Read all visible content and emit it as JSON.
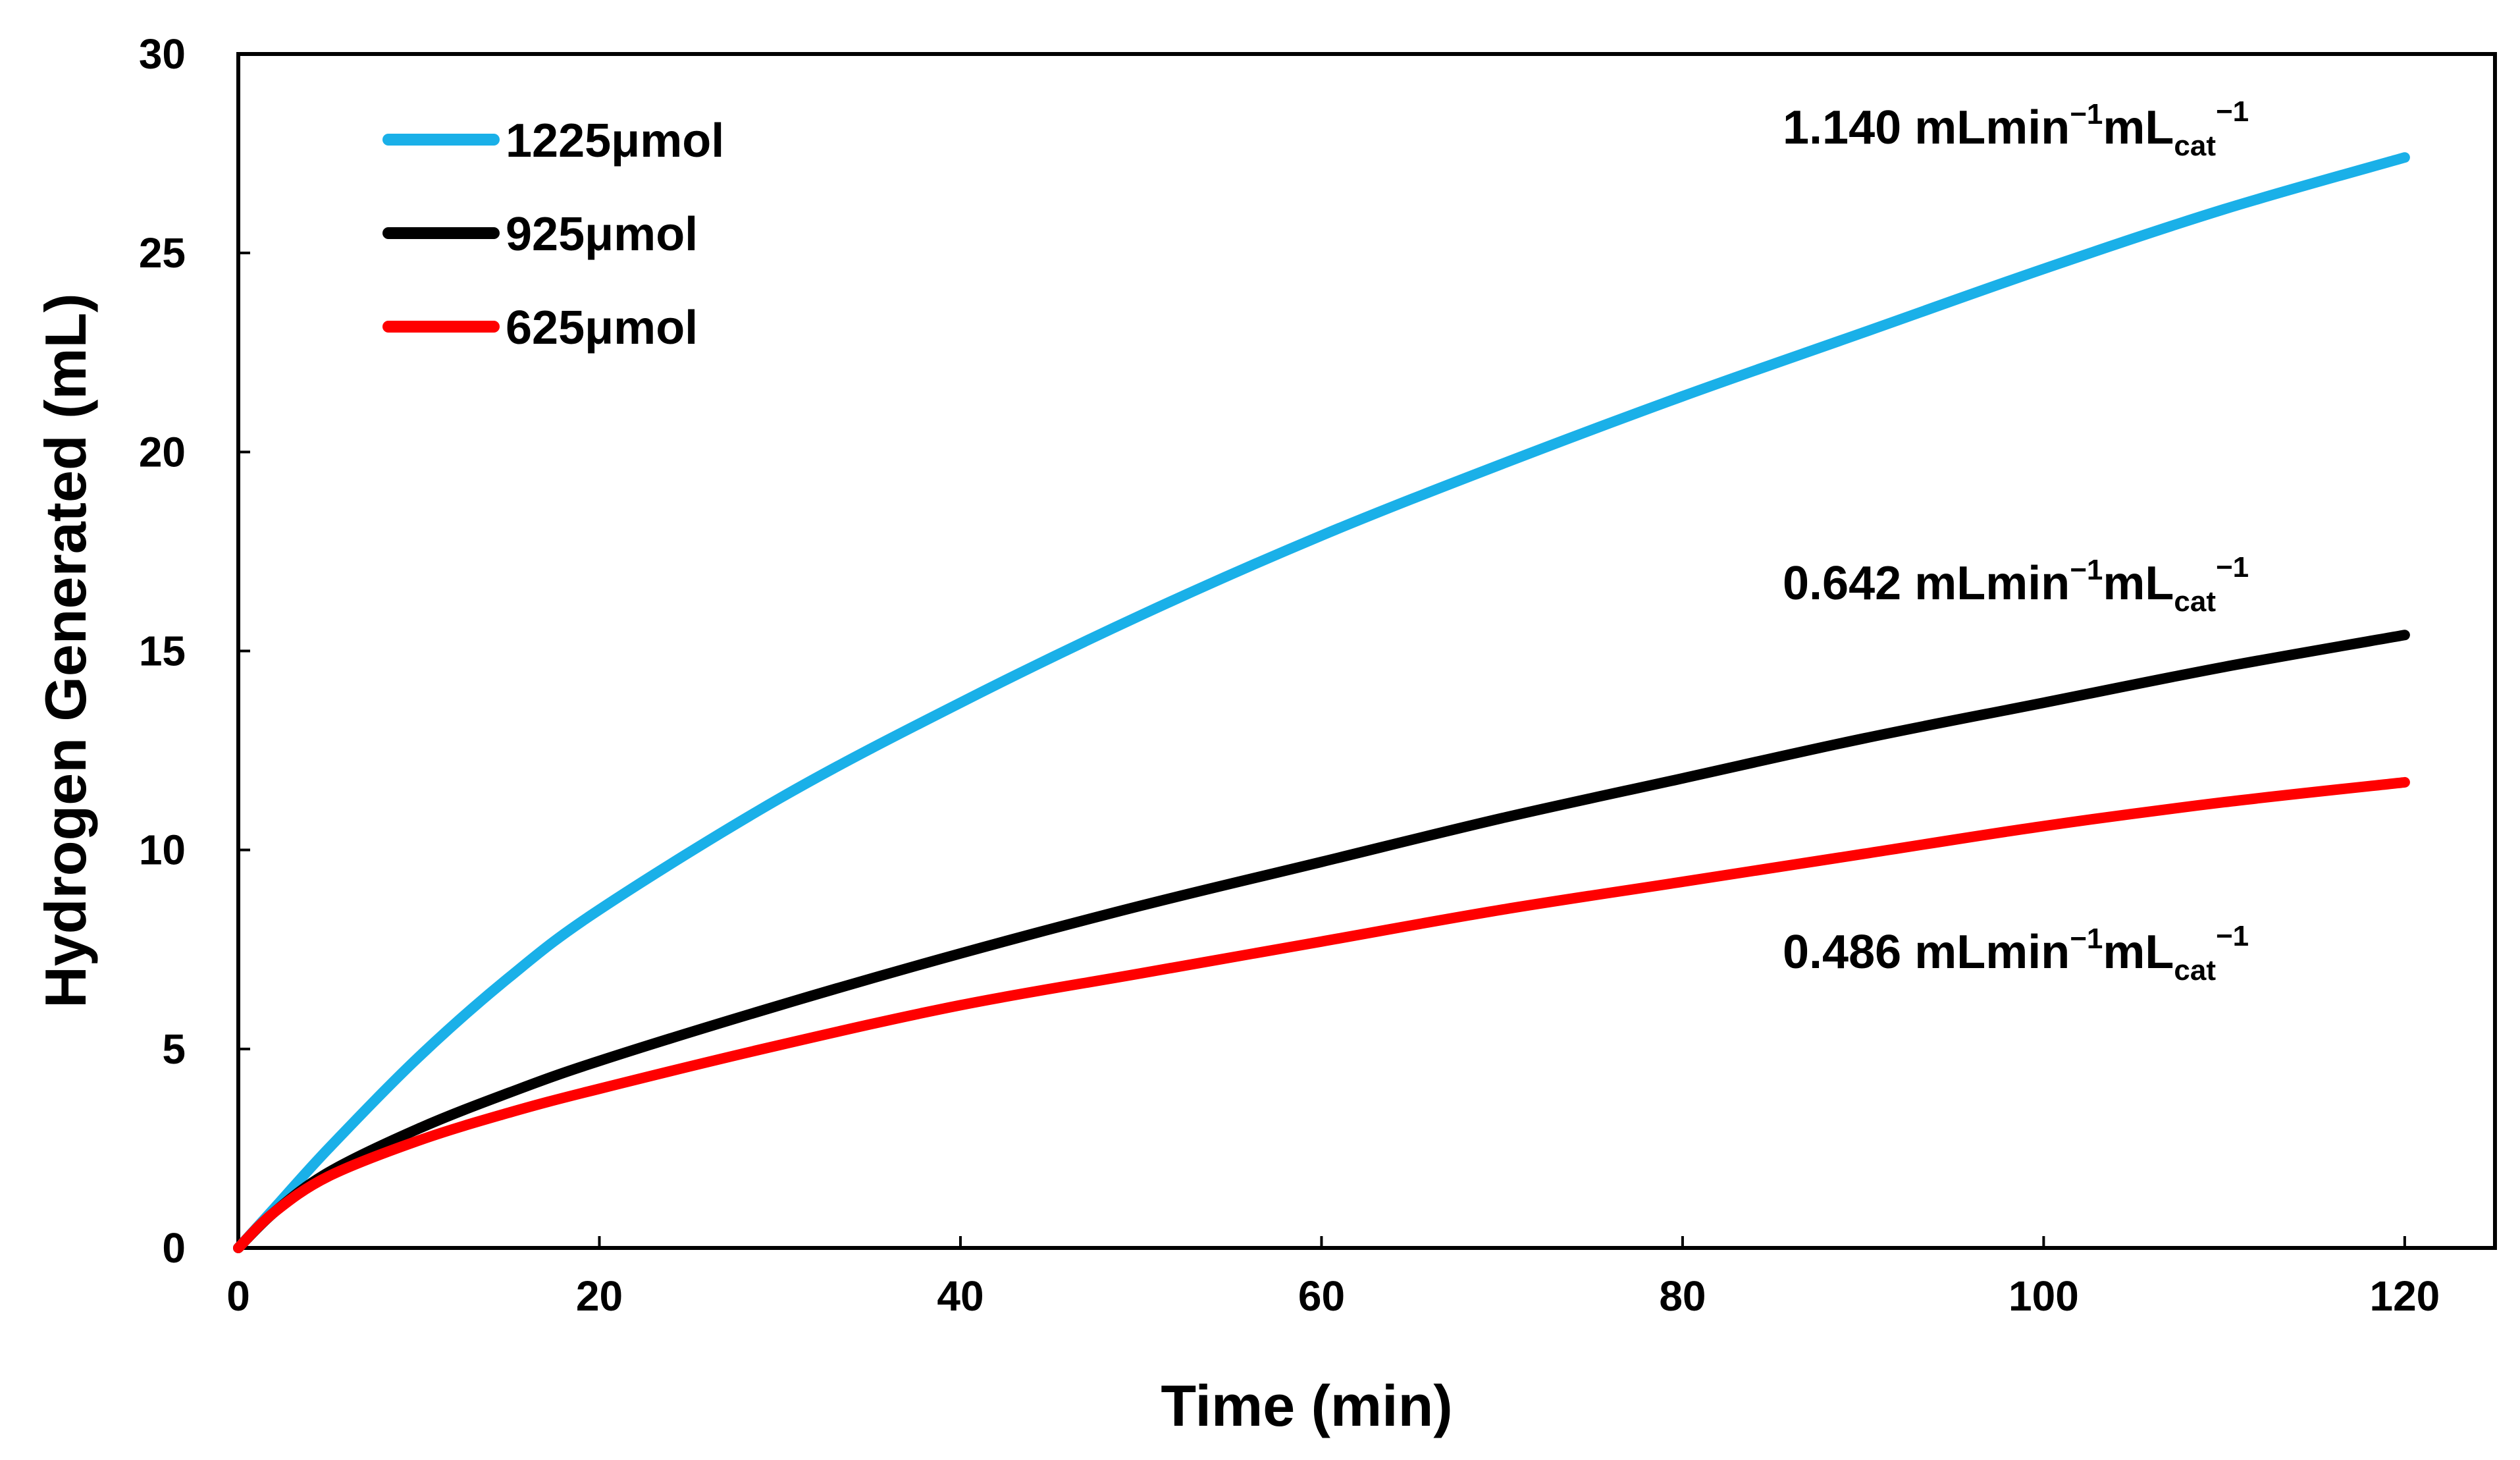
{
  "chart_data": {
    "type": "line",
    "title": "",
    "xlabel": "Time (min)",
    "ylabel": "Hydrogen Generated (mL)",
    "xlim": [
      0,
      125
    ],
    "ylim": [
      0,
      30
    ],
    "x_ticks": [
      0,
      20,
      40,
      60,
      80,
      100,
      120
    ],
    "y_ticks": [
      0,
      5,
      10,
      15,
      20,
      25,
      30
    ],
    "grid": false,
    "legend_position": "top-left",
    "series": [
      {
        "name": "1225μmol",
        "color": "#1AB0E8",
        "x": [
          0,
          2,
          5,
          10,
          15,
          20,
          30,
          40,
          50,
          60,
          70,
          80,
          90,
          100,
          110,
          120
        ],
        "y": [
          0,
          1.0,
          2.5,
          4.8,
          6.8,
          8.5,
          11.3,
          13.7,
          15.9,
          17.9,
          19.7,
          21.4,
          23.0,
          24.6,
          26.1,
          27.4
        ]
      },
      {
        "name": "925μmol",
        "color": "#000000",
        "x": [
          0,
          2,
          5,
          10,
          15,
          20,
          30,
          40,
          50,
          60,
          70,
          80,
          90,
          100,
          110,
          120
        ],
        "y": [
          0,
          0.9,
          1.9,
          3.0,
          3.9,
          4.7,
          6.1,
          7.4,
          8.6,
          9.7,
          10.8,
          11.8,
          12.8,
          13.7,
          14.6,
          15.4
        ]
      },
      {
        "name": "625μmol",
        "color": "#FF0000",
        "x": [
          0,
          2,
          5,
          10,
          15,
          20,
          30,
          40,
          50,
          60,
          70,
          80,
          90,
          100,
          110,
          120
        ],
        "y": [
          0,
          0.9,
          1.8,
          2.7,
          3.4,
          4.0,
          5.1,
          6.1,
          6.9,
          7.7,
          8.5,
          9.2,
          9.9,
          10.6,
          11.2,
          11.7
        ]
      }
    ],
    "annotations": [
      {
        "value": "1.140",
        "unit": "mLmin",
        "exp1": "−1",
        "unit2": "mL",
        "sub": "cat",
        "exp2": "−1",
        "series": "1225μmol"
      },
      {
        "value": "0.642",
        "unit": "mLmin",
        "exp1": "−1",
        "unit2": "mL",
        "sub": "cat",
        "exp2": "−1",
        "series": "925μmol"
      },
      {
        "value": "0.486",
        "unit": "mLmin",
        "exp1": "−1",
        "unit2": "mL",
        "sub": "cat",
        "exp2": "−1",
        "series": "625μmol"
      }
    ]
  }
}
